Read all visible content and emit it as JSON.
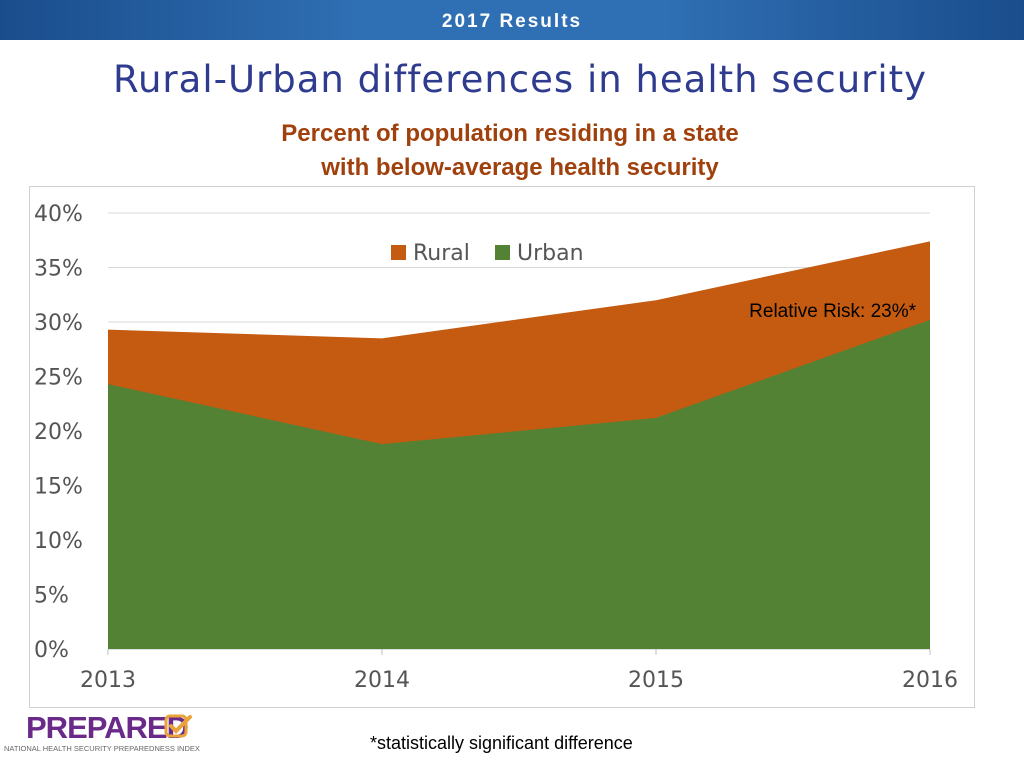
{
  "header": {
    "bar_title": "2017 Results"
  },
  "slide": {
    "title": "Rural-Urban differences in health security",
    "subtitle_line1": "Percent of population residing in a state",
    "subtitle_line2": "with below-average health security",
    "footnote": "*statistically significant difference"
  },
  "logo": {
    "word": "PREPARED",
    "tagline": "NATIONAL HEALTH SECURITY PREPAREDNESS INDEX",
    "colors": {
      "word": "#6a2a8a",
      "check": "#e8a33a"
    }
  },
  "chart_data": {
    "type": "area",
    "stacked": false,
    "x": [
      "2013",
      "2014",
      "2015",
      "2016"
    ],
    "series": [
      {
        "name": "Rural",
        "values": [
          29.3,
          28.5,
          32.0,
          37.4
        ],
        "color": "#c55a11"
      },
      {
        "name": "Urban",
        "values": [
          24.3,
          18.8,
          21.2,
          30.2
        ],
        "color": "#548235"
      }
    ],
    "ylim": [
      0,
      40
    ],
    "yticks": [
      0,
      5,
      10,
      15,
      20,
      25,
      30,
      35,
      40
    ],
    "ytick_format": "percent",
    "grid": true,
    "legend_position": "top-center",
    "annotation": {
      "text": "Relative Risk: 23%*",
      "anchor": "top-right"
    }
  }
}
